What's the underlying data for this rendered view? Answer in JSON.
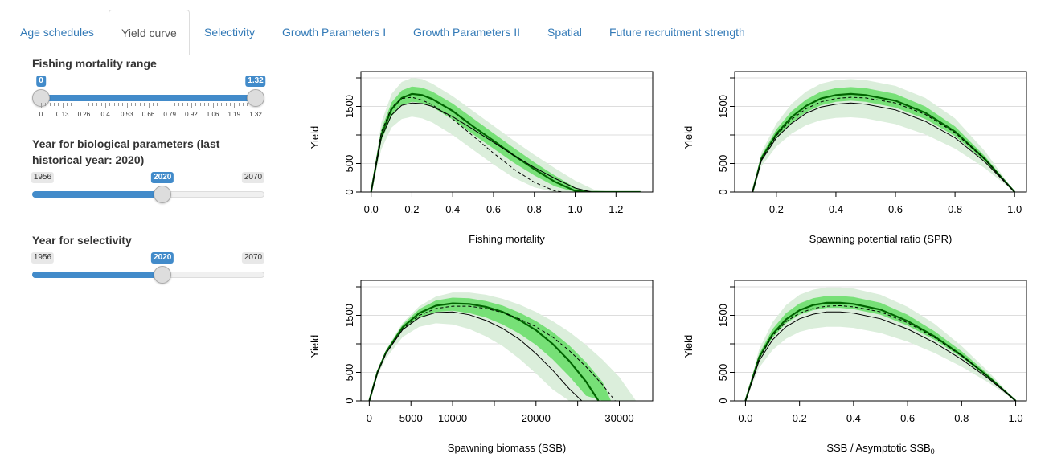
{
  "tabs": [
    {
      "label": "Age schedules"
    },
    {
      "label": "Yield curve",
      "active": true
    },
    {
      "label": "Selectivity"
    },
    {
      "label": "Growth Parameters I"
    },
    {
      "label": "Growth Parameters II"
    },
    {
      "label": "Spatial"
    },
    {
      "label": "Future recruitment strength"
    }
  ],
  "controls": {
    "fmort": {
      "label": "Fishing mortality range",
      "min": 0,
      "max": 1.32,
      "from": 0,
      "to": 1.32,
      "from_label": "0",
      "to_label": "1.32",
      "grid_labels": [
        "0",
        "0.13",
        "0.26",
        "0.4",
        "0.53",
        "0.66",
        "0.79",
        "0.92",
        "1.06",
        "1.19",
        "1.32"
      ]
    },
    "bioyear": {
      "label": "Year for biological parameters (last historical year: 2020)",
      "min": 1956,
      "max": 2070,
      "value": 2020,
      "min_label": "1956",
      "max_label": "2070",
      "value_label": "2020"
    },
    "selyear": {
      "label": "Year for selectivity",
      "min": 1956,
      "max": 2070,
      "value": 2020,
      "min_label": "1956",
      "max_label": "2070",
      "value_label": "2020"
    }
  },
  "colors": {
    "accent": "#428bca",
    "band_outer": "#dbeedb",
    "band_inner": "#77e077",
    "curve": "#000000",
    "median": "#006400"
  },
  "chart_data": [
    {
      "type": "line",
      "xlabel": "Fishing mortality",
      "ylabel": "Yield",
      "xlim": [
        -0.05,
        1.38
      ],
      "ylim": [
        0,
        2000
      ],
      "xticks": [
        0.0,
        0.2,
        0.4,
        0.6,
        0.8,
        1.0,
        1.2
      ],
      "xtick_labels": [
        "0.0",
        "0.2",
        "0.4",
        "0.6",
        "0.8",
        "1.0",
        "1.2"
      ],
      "yticks": [
        0,
        500,
        1000,
        1500,
        2000
      ],
      "ytick_labels": [
        "0",
        "500",
        "",
        "1500",
        ""
      ],
      "grid": true,
      "series": [
        {
          "role": "solid",
          "x": [
            0,
            0.05,
            0.1,
            0.15,
            0.2,
            0.25,
            0.3,
            0.4,
            0.5,
            0.6,
            0.7,
            0.8,
            0.9,
            1.0,
            1.08
          ],
          "y": [
            0,
            950,
            1350,
            1520,
            1560,
            1550,
            1500,
            1320,
            1100,
            870,
            640,
            430,
            240,
            70,
            0
          ]
        },
        {
          "role": "dashed",
          "x": [
            0,
            0.05,
            0.1,
            0.15,
            0.2,
            0.25,
            0.3,
            0.4,
            0.5,
            0.6,
            0.7,
            0.8,
            0.9,
            0.94
          ],
          "y": [
            0,
            1050,
            1480,
            1640,
            1660,
            1610,
            1530,
            1280,
            980,
            680,
            400,
            170,
            20,
            0
          ]
        },
        {
          "role": "median",
          "x": [
            0,
            0.05,
            0.1,
            0.15,
            0.2,
            0.25,
            0.3,
            0.4,
            0.5,
            0.6,
            0.7,
            0.8,
            0.9,
            1.0,
            1.08,
            1.32
          ],
          "y": [
            0,
            1000,
            1450,
            1650,
            1720,
            1700,
            1630,
            1420,
            1150,
            900,
            640,
            400,
            180,
            20,
            0,
            0
          ]
        },
        {
          "role": "band_outer",
          "x": [
            0,
            0.05,
            0.1,
            0.15,
            0.2,
            0.25,
            0.3,
            0.4,
            0.5,
            0.6,
            0.7,
            0.8,
            0.9,
            1.0,
            1.1,
            1.2,
            1.32
          ],
          "lower": [
            0,
            750,
            1130,
            1280,
            1320,
            1290,
            1220,
            1000,
            740,
            480,
            250,
            80,
            0,
            0,
            0,
            0,
            0
          ],
          "upper": [
            0,
            1220,
            1720,
            1930,
            2000,
            1980,
            1900,
            1680,
            1420,
            1160,
            900,
            650,
            420,
            200,
            30,
            0,
            0
          ]
        },
        {
          "role": "band_inner",
          "x": [
            0,
            0.05,
            0.1,
            0.15,
            0.2,
            0.25,
            0.3,
            0.4,
            0.5,
            0.6,
            0.7,
            0.8,
            0.9,
            1.0,
            1.05,
            1.1,
            1.32
          ],
          "lower": [
            0,
            900,
            1330,
            1520,
            1580,
            1560,
            1490,
            1270,
            1010,
            760,
            510,
            290,
            100,
            0,
            0,
            0,
            0
          ],
          "upper": [
            0,
            1100,
            1570,
            1780,
            1850,
            1830,
            1760,
            1550,
            1290,
            1030,
            770,
            520,
            290,
            80,
            10,
            0,
            0
          ]
        }
      ]
    },
    {
      "type": "line",
      "xlabel": "Spawning potential ratio (SPR)",
      "ylabel": "Yield",
      "xlim": [
        0.06,
        1.04
      ],
      "ylim": [
        0,
        2000
      ],
      "xticks": [
        0.2,
        0.4,
        0.6,
        0.8,
        1.0
      ],
      "xtick_labels": [
        "0.2",
        "0.4",
        "0.6",
        "0.8",
        "1.0"
      ],
      "yticks": [
        0,
        500,
        1000,
        1500,
        2000
      ],
      "ytick_labels": [
        "0",
        "500",
        "",
        "1500",
        ""
      ],
      "grid": true,
      "series": [
        {
          "role": "solid",
          "x": [
            0.12,
            0.15,
            0.2,
            0.25,
            0.3,
            0.35,
            0.4,
            0.45,
            0.5,
            0.6,
            0.7,
            0.8,
            0.9,
            1.0
          ],
          "y": [
            0,
            550,
            950,
            1200,
            1380,
            1490,
            1540,
            1560,
            1540,
            1440,
            1240,
            950,
            530,
            0
          ]
        },
        {
          "role": "dashed",
          "x": [
            0.12,
            0.15,
            0.2,
            0.25,
            0.3,
            0.35,
            0.4,
            0.45,
            0.5,
            0.6,
            0.7,
            0.8,
            0.9,
            1.0
          ],
          "y": [
            0,
            570,
            990,
            1270,
            1460,
            1580,
            1640,
            1660,
            1650,
            1560,
            1360,
            1040,
            570,
            0
          ]
        },
        {
          "role": "median",
          "x": [
            0.12,
            0.15,
            0.2,
            0.25,
            0.3,
            0.35,
            0.4,
            0.45,
            0.5,
            0.6,
            0.7,
            0.8,
            0.9,
            1.0
          ],
          "y": [
            0,
            590,
            1020,
            1310,
            1510,
            1640,
            1700,
            1720,
            1700,
            1600,
            1390,
            1060,
            580,
            0
          ]
        },
        {
          "role": "band_outer",
          "x": [
            0.12,
            0.15,
            0.2,
            0.25,
            0.3,
            0.35,
            0.4,
            0.45,
            0.5,
            0.6,
            0.7,
            0.8,
            0.9,
            1.0
          ],
          "lower": [
            0,
            450,
            800,
            1020,
            1170,
            1260,
            1300,
            1310,
            1290,
            1190,
            1010,
            760,
            420,
            0
          ],
          "upper": [
            0,
            700,
            1200,
            1540,
            1760,
            1900,
            1960,
            1980,
            1960,
            1860,
            1650,
            1290,
            720,
            0
          ]
        },
        {
          "role": "band_inner",
          "x": [
            0.12,
            0.15,
            0.2,
            0.25,
            0.3,
            0.35,
            0.4,
            0.45,
            0.5,
            0.6,
            0.7,
            0.8,
            0.9,
            1.0
          ],
          "lower": [
            0,
            540,
            940,
            1210,
            1400,
            1520,
            1580,
            1600,
            1580,
            1480,
            1280,
            980,
            540,
            0
          ],
          "upper": [
            0,
            640,
            1100,
            1410,
            1620,
            1760,
            1820,
            1840,
            1820,
            1720,
            1500,
            1150,
            630,
            0
          ]
        }
      ]
    },
    {
      "type": "line",
      "xlabel": "Spawning biomass (SSB)",
      "ylabel": "Yield",
      "xlim": [
        -1000,
        34000
      ],
      "ylim": [
        0,
        2000
      ],
      "xticks": [
        0,
        5000,
        10000,
        15000,
        20000,
        25000,
        30000
      ],
      "xtick_labels": [
        "0",
        "5000",
        "10000",
        "",
        "20000",
        "",
        "30000"
      ],
      "yticks": [
        0,
        500,
        1000,
        1500,
        2000
      ],
      "ytick_labels": [
        "0",
        "500",
        "",
        "1500",
        ""
      ],
      "grid": true,
      "series": [
        {
          "role": "solid",
          "x": [
            0,
            1000,
            2000,
            4000,
            6000,
            8000,
            10000,
            12000,
            14000,
            16000,
            18000,
            20000,
            22000,
            24000,
            25500
          ],
          "y": [
            0,
            500,
            830,
            1250,
            1460,
            1550,
            1560,
            1510,
            1410,
            1270,
            1080,
            830,
            540,
            210,
            0
          ]
        },
        {
          "role": "dashed",
          "x": [
            0,
            1000,
            2000,
            4000,
            6000,
            8000,
            10000,
            12000,
            14000,
            16000,
            18000,
            20000,
            22000,
            24000,
            26000,
            28000,
            29500
          ],
          "y": [
            0,
            500,
            830,
            1260,
            1500,
            1620,
            1660,
            1660,
            1620,
            1550,
            1440,
            1300,
            1120,
            880,
            600,
            280,
            0
          ]
        },
        {
          "role": "median",
          "x": [
            0,
            1000,
            2000,
            4000,
            6000,
            8000,
            10000,
            12000,
            14000,
            16000,
            18000,
            20000,
            22000,
            24000,
            26000,
            27500
          ],
          "y": [
            0,
            510,
            850,
            1290,
            1540,
            1670,
            1710,
            1700,
            1650,
            1560,
            1420,
            1240,
            1000,
            700,
            340,
            0
          ]
        },
        {
          "role": "band_outer",
          "x": [
            0,
            1000,
            2000,
            4000,
            6000,
            8000,
            10000,
            12000,
            14000,
            16000,
            18000,
            20000,
            22000,
            24000,
            26000,
            28000,
            30000,
            32000
          ],
          "lower": [
            0,
            450,
            750,
            1120,
            1300,
            1360,
            1340,
            1260,
            1130,
            960,
            740,
            480,
            200,
            0,
            0,
            0,
            0,
            0
          ],
          "upper": [
            0,
            540,
            900,
            1370,
            1660,
            1830,
            1900,
            1900,
            1860,
            1790,
            1690,
            1560,
            1400,
            1210,
            980,
            720,
            420,
            0
          ]
        },
        {
          "role": "band_inner",
          "x": [
            0,
            1000,
            2000,
            4000,
            6000,
            8000,
            10000,
            12000,
            14000,
            16000,
            18000,
            20000,
            22000,
            24000,
            26000,
            28000,
            29000
          ],
          "lower": [
            0,
            490,
            820,
            1240,
            1460,
            1560,
            1580,
            1540,
            1460,
            1340,
            1180,
            980,
            730,
            430,
            90,
            0,
            0
          ],
          "upper": [
            0,
            520,
            880,
            1340,
            1610,
            1760,
            1810,
            1800,
            1750,
            1670,
            1550,
            1400,
            1210,
            970,
            680,
            330,
            0
          ]
        }
      ]
    },
    {
      "type": "line",
      "xlabel": "SSB / Asymptotic SSB0",
      "ylabel": "Yield",
      "xlim": [
        -0.04,
        1.04
      ],
      "ylim": [
        0,
        2000
      ],
      "xticks": [
        0.0,
        0.2,
        0.4,
        0.6,
        0.8,
        1.0
      ],
      "xtick_labels": [
        "0.0",
        "0.2",
        "0.4",
        "0.6",
        "0.8",
        "1.0"
      ],
      "yticks": [
        0,
        500,
        1000,
        1500,
        2000
      ],
      "ytick_labels": [
        "0",
        "500",
        "",
        "1500",
        ""
      ],
      "grid": true,
      "series": [
        {
          "role": "solid",
          "x": [
            0,
            0.05,
            0.1,
            0.15,
            0.2,
            0.25,
            0.3,
            0.35,
            0.4,
            0.5,
            0.6,
            0.7,
            0.8,
            0.9,
            1.0
          ],
          "y": [
            0,
            700,
            1070,
            1300,
            1440,
            1520,
            1560,
            1560,
            1540,
            1440,
            1260,
            1020,
            730,
            390,
            0
          ]
        },
        {
          "role": "dashed",
          "x": [
            0,
            0.05,
            0.1,
            0.15,
            0.2,
            0.25,
            0.3,
            0.35,
            0.4,
            0.5,
            0.6,
            0.7,
            0.8,
            0.9,
            1.0
          ],
          "y": [
            0,
            740,
            1140,
            1390,
            1540,
            1620,
            1660,
            1670,
            1650,
            1560,
            1370,
            1110,
            790,
            420,
            0
          ]
        },
        {
          "role": "median",
          "x": [
            0,
            0.05,
            0.1,
            0.15,
            0.2,
            0.25,
            0.3,
            0.35,
            0.4,
            0.5,
            0.6,
            0.7,
            0.8,
            0.9,
            1.0
          ],
          "y": [
            0,
            760,
            1170,
            1430,
            1590,
            1680,
            1720,
            1720,
            1700,
            1600,
            1400,
            1130,
            800,
            420,
            0
          ]
        },
        {
          "role": "band_outer",
          "x": [
            0,
            0.05,
            0.1,
            0.15,
            0.2,
            0.25,
            0.3,
            0.35,
            0.4,
            0.5,
            0.6,
            0.7,
            0.8,
            0.9,
            1.0
          ],
          "lower": [
            0,
            580,
            890,
            1090,
            1210,
            1270,
            1300,
            1300,
            1280,
            1190,
            1040,
            840,
            600,
            320,
            0
          ],
          "upper": [
            0,
            900,
            1380,
            1680,
            1860,
            1950,
            1990,
            1990,
            1970,
            1860,
            1650,
            1350,
            960,
            510,
            0
          ]
        },
        {
          "role": "band_inner",
          "x": [
            0,
            0.05,
            0.1,
            0.15,
            0.2,
            0.25,
            0.3,
            0.35,
            0.4,
            0.5,
            0.6,
            0.7,
            0.8,
            0.9,
            1.0
          ],
          "lower": [
            0,
            720,
            1110,
            1360,
            1510,
            1590,
            1630,
            1630,
            1610,
            1510,
            1320,
            1070,
            760,
            400,
            0
          ],
          "upper": [
            0,
            820,
            1260,
            1540,
            1710,
            1800,
            1840,
            1840,
            1820,
            1720,
            1510,
            1220,
            870,
            460,
            0
          ]
        }
      ]
    }
  ]
}
